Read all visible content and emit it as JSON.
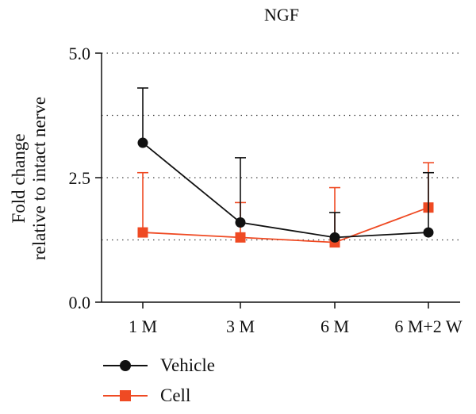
{
  "chart_data": {
    "type": "line",
    "title": "NGF",
    "ylabel": [
      "Fold change",
      "relative to intact nerve"
    ],
    "xlabel": "",
    "categories": [
      "1 M",
      "3 M",
      "6 M",
      "6 M+2 W"
    ],
    "ylim": [
      0,
      5
    ],
    "yticks": [
      0,
      2.5,
      5
    ],
    "ytick_labels": [
      "0.0",
      "2.5",
      "5.0"
    ],
    "grid": "dotted horizontal",
    "grid_values": [
      1.25,
      2.5,
      3.75,
      5.0
    ],
    "legend_position": "bottom-left",
    "series": [
      {
        "name": "Vehicle",
        "color": "#111111",
        "marker": "circle",
        "values": [
          3.2,
          1.6,
          1.3,
          1.4
        ],
        "error_upper": [
          4.3,
          2.9,
          1.8,
          2.6
        ]
      },
      {
        "name": "Cell",
        "color": "#ef4a23",
        "marker": "square",
        "values": [
          1.4,
          1.3,
          1.2,
          1.9
        ],
        "error_upper": [
          2.6,
          2.0,
          2.3,
          2.8
        ]
      }
    ]
  }
}
